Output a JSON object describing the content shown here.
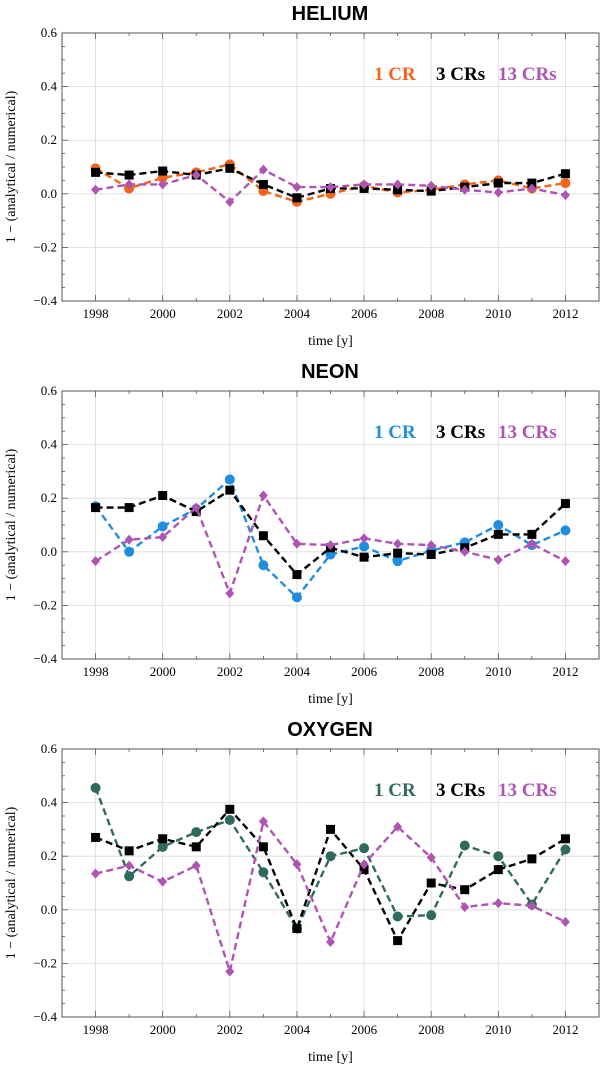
{
  "chart_data": [
    {
      "type": "line",
      "title": "HELIUM",
      "xlabel": "time [y]",
      "ylabel": "1 − (analytical / numerical)",
      "xlim": [
        1997,
        2013
      ],
      "ylim": [
        -0.4,
        0.6
      ],
      "xticks": [
        1998,
        2000,
        2002,
        2004,
        2006,
        2008,
        2010,
        2012
      ],
      "yticks": [
        -0.4,
        -0.2,
        0.0,
        0.2,
        0.4,
        0.6
      ],
      "x": [
        1998,
        1999,
        2000,
        2001,
        2002,
        2003,
        2004,
        2005,
        2006,
        2007,
        2008,
        2009,
        2010,
        2011,
        2012
      ],
      "series": [
        {
          "name": "1 CR",
          "color": "#f26419",
          "marker": "circle",
          "values": [
            0.095,
            0.02,
            0.06,
            0.08,
            0.11,
            0.01,
            -0.03,
            0.0,
            0.03,
            0.005,
            0.015,
            0.035,
            0.05,
            0.02,
            0.04
          ]
        },
        {
          "name": "3 CRs",
          "color": "#000000",
          "marker": "square",
          "values": [
            0.08,
            0.07,
            0.085,
            0.07,
            0.095,
            0.035,
            -0.015,
            0.02,
            0.02,
            0.015,
            0.01,
            0.025,
            0.04,
            0.04,
            0.075
          ]
        },
        {
          "name": "13 CRs",
          "color": "#b054b4",
          "marker": "diamond",
          "values": [
            0.015,
            0.035,
            0.035,
            0.07,
            -0.03,
            0.09,
            0.025,
            0.025,
            0.035,
            0.035,
            0.03,
            0.015,
            0.005,
            0.02,
            -0.005
          ]
        }
      ]
    },
    {
      "type": "line",
      "title": "NEON",
      "xlabel": "time [y]",
      "ylabel": "1 − (analytical / numerical)",
      "xlim": [
        1997,
        2013
      ],
      "ylim": [
        -0.4,
        0.6
      ],
      "xticks": [
        1998,
        2000,
        2002,
        2004,
        2006,
        2008,
        2010,
        2012
      ],
      "yticks": [
        -0.4,
        -0.2,
        0.0,
        0.2,
        0.4,
        0.6
      ],
      "x": [
        1998,
        1999,
        2000,
        2001,
        2002,
        2003,
        2004,
        2005,
        2006,
        2007,
        2008,
        2009,
        2010,
        2011,
        2012
      ],
      "series": [
        {
          "name": "1 CR",
          "color": "#1f8de0",
          "marker": "circle",
          "values": [
            0.17,
            0.0,
            0.095,
            0.16,
            0.27,
            -0.05,
            -0.17,
            -0.01,
            0.02,
            -0.035,
            0.005,
            0.035,
            0.1,
            0.025,
            0.08
          ]
        },
        {
          "name": "3 CRs",
          "color": "#000000",
          "marker": "square",
          "values": [
            0.165,
            0.165,
            0.21,
            0.15,
            0.23,
            0.06,
            -0.085,
            0.015,
            -0.02,
            -0.005,
            -0.01,
            0.015,
            0.065,
            0.065,
            0.18
          ]
        },
        {
          "name": "13 CRs",
          "color": "#b054b4",
          "marker": "diamond",
          "values": [
            -0.035,
            0.045,
            0.055,
            0.165,
            -0.155,
            0.21,
            0.03,
            0.025,
            0.05,
            0.03,
            0.025,
            0.0,
            -0.03,
            0.03,
            -0.035
          ]
        }
      ]
    },
    {
      "type": "line",
      "title": "OXYGEN",
      "xlabel": "time [y]",
      "ylabel": "1 − (analytical / numerical)",
      "xlim": [
        1997,
        2013
      ],
      "ylim": [
        -0.4,
        0.6
      ],
      "xticks": [
        1998,
        2000,
        2002,
        2004,
        2006,
        2008,
        2010,
        2012
      ],
      "yticks": [
        -0.4,
        -0.2,
        0.0,
        0.2,
        0.4,
        0.6
      ],
      "x": [
        1998,
        1999,
        2000,
        2001,
        2002,
        2003,
        2004,
        2005,
        2006,
        2007,
        2008,
        2009,
        2010,
        2011,
        2012
      ],
      "series": [
        {
          "name": "1 CR",
          "color": "#2e6b5e",
          "marker": "circle",
          "values": [
            0.455,
            0.125,
            0.235,
            0.29,
            0.335,
            0.14,
            -0.07,
            0.2,
            0.23,
            -0.025,
            -0.02,
            0.24,
            0.2,
            0.02,
            0.225
          ]
        },
        {
          "name": "3 CRs",
          "color": "#000000",
          "marker": "square",
          "values": [
            0.27,
            0.22,
            0.265,
            0.235,
            0.375,
            0.235,
            -0.07,
            0.3,
            0.15,
            -0.115,
            0.1,
            0.075,
            0.15,
            0.19,
            0.265
          ]
        },
        {
          "name": "13 CRs",
          "color": "#b054b4",
          "marker": "diamond",
          "values": [
            0.135,
            0.165,
            0.105,
            0.165,
            -0.23,
            0.33,
            0.17,
            -0.12,
            0.17,
            0.31,
            0.195,
            0.01,
            0.025,
            0.015,
            -0.045
          ]
        }
      ]
    }
  ]
}
